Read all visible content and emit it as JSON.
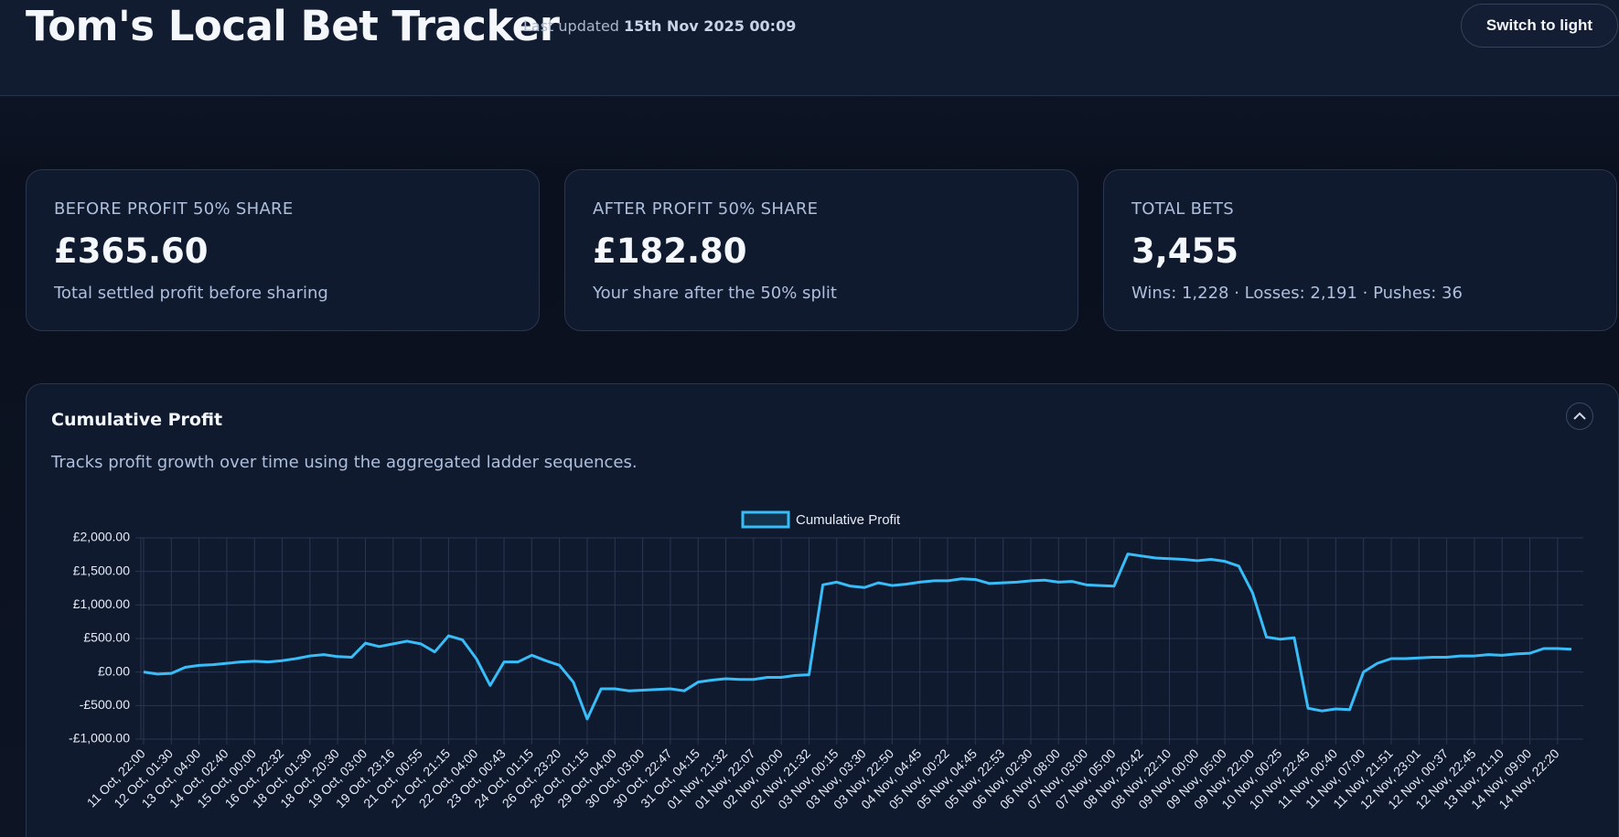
{
  "header": {
    "title": "Tom's Local Bet Tracker",
    "updated_label": "Last updated",
    "updated_value": "15th Nov 2025 00:09",
    "button": "Switch to light"
  },
  "cards": [
    {
      "label": "BEFORE PROFIT 50% SHARE",
      "value": "£365.60",
      "note": "Total settled profit before sharing"
    },
    {
      "label": "AFTER PROFIT 50% SHARE",
      "value": "£182.80",
      "note": "Your share after the 50% split"
    },
    {
      "label": "TOTAL BETS",
      "value": "3,455",
      "note": "Wins: 1,228 · Losses: 2,191 · Pushes: 36"
    }
  ],
  "chart_data": {
    "type": "line",
    "title": "Cumulative Profit",
    "subtitle": "Tracks profit growth over time using the aggregated ladder sequences.",
    "categories": [
      "11 Oct, 22:00",
      null,
      "12 Oct, 01:30",
      null,
      "13 Oct, 04:00",
      null,
      "14 Oct, 02:40",
      null,
      "15 Oct, 00:00",
      null,
      "16 Oct, 22:32",
      null,
      "18 Oct, 01:30",
      null,
      "18 Oct, 20:30",
      null,
      "19 Oct, 03:00",
      null,
      "19 Oct, 23:16",
      null,
      "21 Oct, 00:55",
      null,
      "21 Oct, 21:15",
      null,
      "22 Oct, 04:00",
      null,
      "23 Oct, 00:43",
      null,
      "24 Oct, 01:15",
      null,
      "26 Oct, 23:20",
      null,
      "28 Oct, 01:15",
      null,
      "29 Oct, 04:00",
      null,
      "30 Oct, 03:00",
      null,
      "30 Oct, 22:47",
      null,
      "31 Oct, 04:15",
      null,
      "01 Nov, 21:32",
      null,
      "01 Nov, 22:07",
      null,
      "02 Nov, 00:00",
      null,
      "02 Nov, 21:32",
      null,
      "03 Nov, 00:15",
      null,
      "03 Nov, 03:30",
      null,
      "03 Nov, 22:50",
      null,
      "04 Nov, 04:45",
      null,
      "05 Nov, 00:22",
      null,
      "05 Nov, 04:45",
      null,
      "05 Nov, 22:53",
      null,
      "06 Nov, 02:30",
      null,
      "06 Nov, 08:00",
      null,
      "07 Nov, 03:00",
      null,
      "07 Nov, 05:00",
      null,
      "08 Nov, 20:42",
      null,
      "08 Nov, 22:10",
      null,
      "09 Nov, 00:00",
      null,
      "09 Nov, 05:00",
      null,
      "09 Nov, 22:00",
      null,
      "10 Nov, 00:25",
      null,
      "10 Nov, 22:45",
      null,
      "11 Nov, 00:40",
      null,
      "11 Nov, 07:00",
      null,
      "11 Nov, 21:51",
      null,
      "12 Nov, 23:01",
      null,
      "12 Nov, 00:37",
      null,
      "12 Nov, 22:45",
      null,
      "13 Nov, 21:10",
      null,
      "14 Nov, 09:00",
      null,
      "14 Nov, 22:20",
      null
    ],
    "series": [
      {
        "name": "Cumulative Profit",
        "color": "#38bdf8",
        "values": [
          0,
          -30,
          -20,
          70,
          100,
          110,
          130,
          150,
          160,
          150,
          170,
          200,
          240,
          260,
          230,
          220,
          430,
          380,
          420,
          460,
          420,
          300,
          540,
          480,
          200,
          -200,
          150,
          150,
          250,
          170,
          100,
          -150,
          -700,
          -250,
          -250,
          -280,
          -270,
          -260,
          -250,
          -280,
          -150,
          -120,
          -100,
          -110,
          -110,
          -80,
          -80,
          -50,
          -40,
          1300,
          1340,
          1280,
          1260,
          1330,
          1290,
          1310,
          1340,
          1360,
          1360,
          1390,
          1380,
          1320,
          1330,
          1340,
          1360,
          1370,
          1340,
          1350,
          1300,
          1290,
          1280,
          1760,
          1730,
          1700,
          1690,
          1680,
          1660,
          1680,
          1650,
          1580,
          1180,
          520,
          490,
          510,
          -540,
          -580,
          -550,
          -560,
          0,
          130,
          200,
          200,
          210,
          220,
          220,
          240,
          240,
          260,
          250,
          270,
          280,
          350,
          350,
          340
        ]
      }
    ],
    "ylim": [
      -1000,
      2000
    ],
    "yticks": [
      {
        "value": -1000,
        "label": "-£1,000.00"
      },
      {
        "value": -500,
        "label": "-£500.00"
      },
      {
        "value": 0,
        "label": "£0.00"
      },
      {
        "value": 500,
        "label": "£500.00"
      },
      {
        "value": 1000,
        "label": "£1,000.00"
      },
      {
        "value": 1500,
        "label": "£1,500.00"
      },
      {
        "value": 2000,
        "label": "£2,000.00"
      }
    ],
    "grid": true,
    "legend": "top"
  }
}
